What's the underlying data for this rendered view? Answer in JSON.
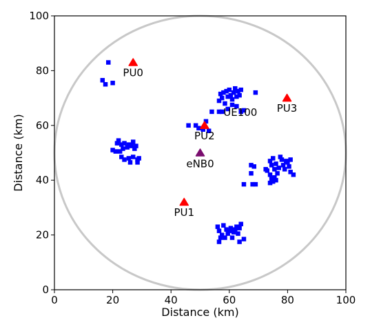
{
  "chart_data": {
    "type": "scatter",
    "title": "",
    "xlabel": "Distance (km)",
    "ylabel": "Distance (km)",
    "xlim": [
      0,
      100
    ],
    "ylim": [
      0,
      100
    ],
    "xticks": [
      "0",
      "20",
      "40",
      "60",
      "80",
      "100"
    ],
    "yticks": [
      "0",
      "20",
      "40",
      "60",
      "80",
      "100"
    ],
    "grid": false,
    "boundary_circle": {
      "center": [
        50,
        50
      ],
      "radius": 50,
      "color": "#c8c8c8"
    },
    "ue_color": "#0000ff",
    "pu_color": "#ff0000",
    "enb_color": "#7a0d6e",
    "primary_users": [
      {
        "label": "PU0",
        "x": 27,
        "y": 83
      },
      {
        "label": "PU1",
        "x": 44.5,
        "y": 32
      },
      {
        "label": "PU2",
        "x": 51.5,
        "y": 60
      },
      {
        "label": "PU3",
        "x": 79.8,
        "y": 70
      }
    ],
    "base_stations": [
      {
        "label": "eNB0",
        "x": 50,
        "y": 50
      }
    ],
    "ue_labels": [
      {
        "label": "UE100",
        "x": 60,
        "y": 66
      }
    ],
    "user_equipment": [
      [
        18.5,
        83
      ],
      [
        16.5,
        76.5
      ],
      [
        17.5,
        75
      ],
      [
        20,
        75.5
      ],
      [
        20,
        51
      ],
      [
        21,
        50.5
      ],
      [
        21.5,
        53.5
      ],
      [
        22,
        54.5
      ],
      [
        23,
        53
      ],
      [
        23.5,
        51.5
      ],
      [
        24,
        53.5
      ],
      [
        25,
        52
      ],
      [
        25.5,
        53
      ],
      [
        26.5,
        52.5
      ],
      [
        27,
        54
      ],
      [
        27.5,
        51.5
      ],
      [
        28,
        52.5
      ],
      [
        23,
        48.5
      ],
      [
        24,
        47.5
      ],
      [
        25.5,
        48
      ],
      [
        26,
        46.5
      ],
      [
        27,
        48.5
      ],
      [
        28.5,
        47.5
      ],
      [
        29,
        48
      ],
      [
        28.5,
        46.5
      ],
      [
        22.5,
        50.5
      ],
      [
        46,
        60
      ],
      [
        48.5,
        60
      ],
      [
        49.5,
        59
      ],
      [
        51,
        58.5
      ],
      [
        52,
        61.5
      ],
      [
        53,
        58
      ],
      [
        54,
        65
      ],
      [
        56.5,
        69
      ],
      [
        57,
        71.5
      ],
      [
        57.5,
        70
      ],
      [
        58,
        72
      ],
      [
        58.5,
        68
      ],
      [
        59,
        72.5
      ],
      [
        59.5,
        70.5
      ],
      [
        60,
        73
      ],
      [
        60.5,
        71
      ],
      [
        61,
        69.5
      ],
      [
        61.5,
        72
      ],
      [
        62,
        73.5
      ],
      [
        62.5,
        70.5
      ],
      [
        63,
        72.5
      ],
      [
        63.5,
        71
      ],
      [
        64,
        73
      ],
      [
        61,
        67.5
      ],
      [
        62.5,
        67
      ],
      [
        59.5,
        66
      ],
      [
        56.5,
        65
      ],
      [
        57.5,
        65
      ],
      [
        64,
        65
      ],
      [
        65,
        65.5
      ],
      [
        69,
        72
      ],
      [
        67.5,
        45.5
      ],
      [
        68.5,
        45
      ],
      [
        65,
        38.5
      ],
      [
        68,
        38.5
      ],
      [
        69,
        38.5
      ],
      [
        67.5,
        42.5
      ],
      [
        72.5,
        44
      ],
      [
        73,
        43.5
      ],
      [
        74,
        47
      ],
      [
        74.5,
        45.5
      ],
      [
        75,
        48
      ],
      [
        75.5,
        44
      ],
      [
        76,
        46
      ],
      [
        74,
        42
      ],
      [
        74.5,
        40.5
      ],
      [
        75.5,
        41
      ],
      [
        76.5,
        42.5
      ],
      [
        74,
        39
      ],
      [
        75,
        39.5
      ],
      [
        77,
        44.5
      ],
      [
        78,
        47.5
      ],
      [
        78.5,
        45.5
      ],
      [
        79,
        44
      ],
      [
        79.5,
        47
      ],
      [
        80,
        46.5
      ],
      [
        80.5,
        45
      ],
      [
        81,
        47.5
      ],
      [
        81,
        43
      ],
      [
        82,
        42
      ],
      [
        77.5,
        48.5
      ],
      [
        76,
        40
      ],
      [
        56,
        23
      ],
      [
        56.5,
        21.5
      ],
      [
        57,
        19
      ],
      [
        56.5,
        17.5
      ],
      [
        57.5,
        20
      ],
      [
        58,
        23.5
      ],
      [
        58.5,
        19
      ],
      [
        59,
        22
      ],
      [
        59.5,
        20.5
      ],
      [
        60,
        21.5
      ],
      [
        60.5,
        22.5
      ],
      [
        61,
        19
      ],
      [
        61.5,
        21
      ],
      [
        62,
        22
      ],
      [
        62.5,
        23
      ],
      [
        63,
        20.5
      ],
      [
        63.5,
        22.5
      ],
      [
        64,
        24
      ],
      [
        63.5,
        17.5
      ],
      [
        65,
        18.5
      ]
    ]
  }
}
